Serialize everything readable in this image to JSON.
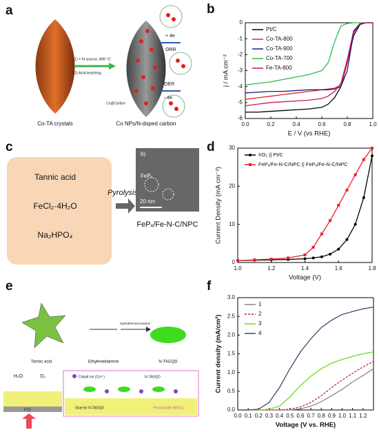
{
  "panel_a": {
    "label": "a",
    "step1": "(1) + N source, 800 °C",
    "step2": "(2) Acid leaching",
    "left": "Co-TA crystals",
    "right": "Co NPs/N-doped carbon",
    "orr_e": "+ 4e",
    "orr": "ORR",
    "oer": "OER",
    "oer_e": "- 4e",
    "core": "Co@Carbon"
  },
  "panel_c": {
    "label": "c",
    "reagents": [
      "Tannic acid",
      "FeCl₂·4H₂O",
      "Na₂HPO₄"
    ],
    "arrow": "Pyrolysis",
    "inset_label": "b)",
    "particle": "FePₓ",
    "scale": "20 nm",
    "product": "FePₓ/Fe-N-C/NPC"
  },
  "panel_e": {
    "label": "e",
    "reactant1": "Tannic acid",
    "reactant2": "Ethylenediamine",
    "reaction": "Hydrothermal reaction",
    "product": "N-TAGQD",
    "h2o": "H₂O",
    "o2": "O₂",
    "substrate": "FTO",
    "cobalt": "Cobalt ion (Co²⁺)",
    "dot": "N-TAGQD",
    "glue": "Glue for N-TAGQD",
    "photoanode": "Photoanode (BiVO₄)"
  },
  "chart_data": [
    {
      "type": "line",
      "label": "b",
      "xlabel": "E / V (vs RHE)",
      "ylabel": "j / mA cm⁻²",
      "x": [
        0,
        0.1,
        0.2,
        0.3,
        0.4,
        0.5,
        0.6,
        0.65,
        0.7,
        0.75,
        0.8,
        0.85,
        0.9,
        0.95,
        1.0
      ],
      "xlim": [
        0,
        1
      ],
      "xticks": [
        {
          "value": 0,
          "label": "0.0"
        },
        0.2,
        0.4,
        0.6,
        0.8,
        {
          "value": 1,
          "label": "1.0"
        }
      ],
      "ylim": [
        -6,
        0
      ],
      "yticks": [
        0,
        -1,
        -2,
        -3,
        -4,
        -5,
        -6
      ],
      "legend": "upper left",
      "series": [
        {
          "name": "Pt/C",
          "color": "#000000",
          "values": [
            -5.6,
            -5.6,
            -5.55,
            -5.5,
            -5.45,
            -5.4,
            -5.3,
            -5.1,
            -4.7,
            -4.0,
            -2.5,
            -0.8,
            -0.1,
            0,
            0
          ]
        },
        {
          "name": "Co-TA-800",
          "color": "#e8202a",
          "values": [
            -4.8,
            -4.7,
            -4.6,
            -4.5,
            -4.4,
            -4.3,
            -4.2,
            -4.15,
            -4.1,
            -3.9,
            -2.5,
            -0.5,
            -0.05,
            0,
            0
          ]
        },
        {
          "name": "Co-TA-900",
          "color": "#1a1a8c",
          "values": [
            -4.4,
            -4.35,
            -4.3,
            -4.3,
            -4.25,
            -4.2,
            -4.2,
            -4.2,
            -4.15,
            -4.0,
            -3.0,
            -0.6,
            -0.05,
            0,
            0
          ]
        },
        {
          "name": "Co-TA-700",
          "color": "#2db84a",
          "values": [
            -3.9,
            -3.8,
            -3.7,
            -3.55,
            -3.4,
            -3.25,
            -3.0,
            -2.5,
            -1.2,
            -0.2,
            -0.05,
            0,
            0,
            0,
            0
          ]
        },
        {
          "name": "Fe-TA-800",
          "color": "#c2185b",
          "values": [
            -5.2,
            -5.1,
            -5.0,
            -4.95,
            -4.9,
            -4.85,
            -4.75,
            -4.6,
            -4.3,
            -3.8,
            -2.3,
            -0.5,
            -0.05,
            0,
            0
          ]
        }
      ]
    },
    {
      "type": "line",
      "label": "d",
      "xlabel": "Voltage (V)",
      "ylabel": "Current Density (mA cm⁻²)",
      "x": [
        1.0,
        1.1,
        1.2,
        1.3,
        1.4,
        1.45,
        1.5,
        1.55,
        1.6,
        1.65,
        1.7,
        1.75,
        1.8
      ],
      "xlim": [
        1.0,
        1.8
      ],
      "xticks": [
        {
          "value": 1.0,
          "label": "1.0"
        },
        1.2,
        1.4,
        1.6,
        1.8
      ],
      "ylim": [
        0,
        30
      ],
      "yticks": [
        0,
        10,
        20,
        30
      ],
      "legend": "upper left",
      "series": [
        {
          "name": "IrO₂ || Pt/C",
          "color": "#000000",
          "marker": "circle",
          "values": [
            0.5,
            0.6,
            0.7,
            0.8,
            1.0,
            1.2,
            1.5,
            2.2,
            3.5,
            6,
            10,
            17,
            28
          ]
        },
        {
          "name": "FePₓ/Fe-N-C/NPC || FePₓ/Fe-N-C/NPC",
          "color": "#e8202a",
          "marker": "square",
          "values": [
            0.5,
            0.7,
            0.9,
            1.2,
            2,
            4,
            7.5,
            11,
            15,
            19,
            23,
            27,
            30
          ]
        }
      ]
    },
    {
      "type": "line",
      "label": "f",
      "xlabel": "Voltage (V vs. RHE)",
      "ylabel": "Current density (mA/cm²)",
      "x": [
        0,
        0.1,
        0.2,
        0.3,
        0.4,
        0.5,
        0.6,
        0.7,
        0.8,
        0.9,
        1.0,
        1.1,
        1.2,
        1.3
      ],
      "xlim": [
        0,
        1.3
      ],
      "xticks": [
        {
          "value": 0,
          "label": "0.0"
        },
        0.1,
        0.2,
        0.3,
        0.4,
        0.5,
        0.6,
        0.7,
        0.8,
        0.9,
        {
          "value": 1,
          "label": "1.0"
        },
        1.1,
        1.2
      ],
      "ylim": [
        0,
        3
      ],
      "yticks": [
        {
          "value": 0,
          "label": "0.0"
        },
        0.5,
        {
          "value": 1,
          "label": "1.0"
        },
        1.5,
        {
          "value": 2,
          "label": "2.0"
        },
        2.5,
        {
          "value": 3,
          "label": "3.0"
        }
      ],
      "legend": "upper left",
      "series": [
        {
          "name": "1",
          "color": "#888888",
          "values": [
            0,
            0,
            0,
            0,
            0,
            0,
            0.03,
            0.1,
            0.22,
            0.38,
            0.55,
            0.75,
            0.92,
            1.1
          ]
        },
        {
          "name": "2",
          "color": "#c2185b",
          "style": "dashed",
          "values": [
            0,
            0,
            0,
            0,
            0,
            0.02,
            0.08,
            0.2,
            0.38,
            0.6,
            0.8,
            0.98,
            1.15,
            1.3
          ]
        },
        {
          "name": "3",
          "color": "#66dd22",
          "values": [
            0,
            0,
            0,
            0.02,
            0.1,
            0.35,
            0.65,
            0.9,
            1.1,
            1.25,
            1.35,
            1.43,
            1.5,
            1.55
          ]
        },
        {
          "name": "4",
          "color": "#3a4a6b",
          "values": [
            0,
            0,
            0.02,
            0.2,
            0.6,
            1.1,
            1.55,
            1.9,
            2.2,
            2.4,
            2.55,
            2.63,
            2.7,
            2.75
          ]
        }
      ]
    }
  ]
}
